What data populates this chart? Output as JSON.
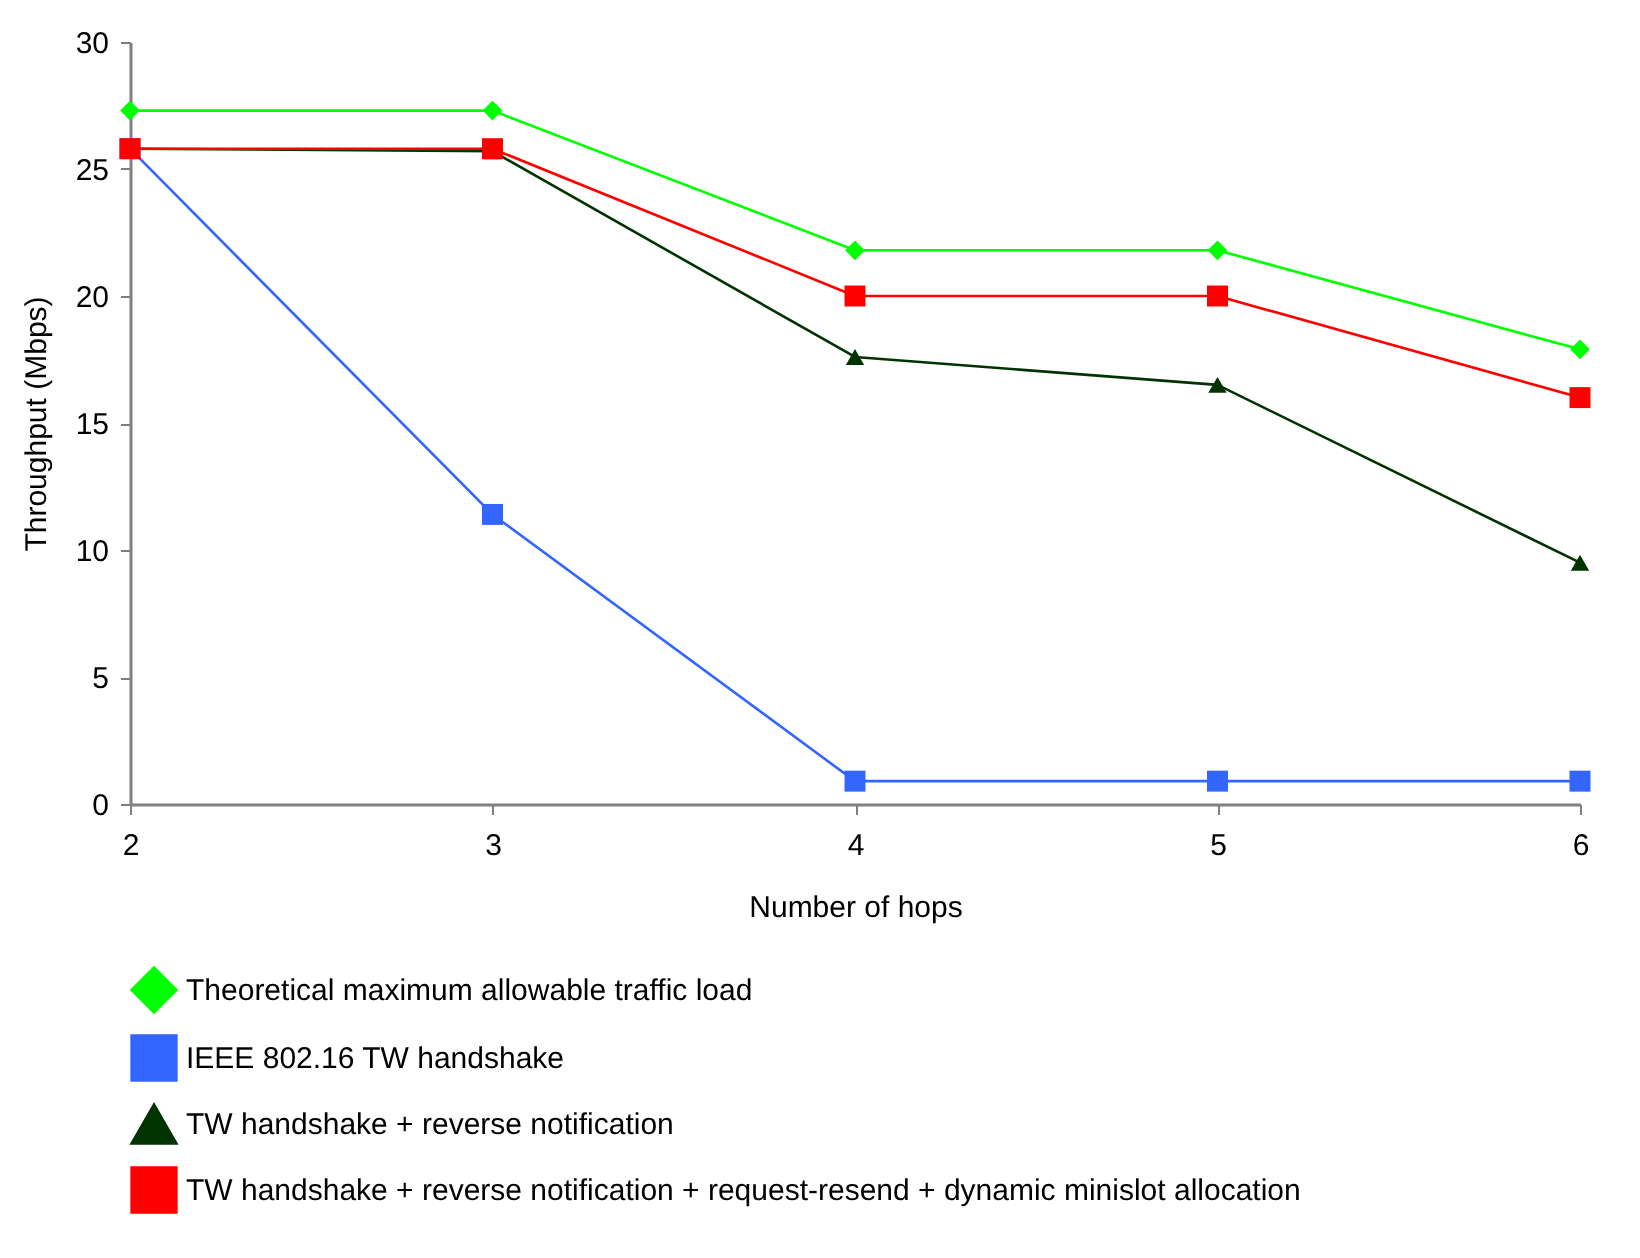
{
  "chart_data": {
    "type": "line",
    "xlabel": "Number of hops",
    "ylabel": "Throughput (Mbps)",
    "x": [
      2,
      3,
      4,
      5,
      6
    ],
    "xlim": [
      2,
      6
    ],
    "xticks": [
      2,
      3,
      4,
      5,
      6
    ],
    "ylim": [
      0,
      30
    ],
    "yticks": [
      0,
      5,
      10,
      15,
      20,
      25,
      30
    ],
    "grid": false,
    "legend": "bottom",
    "series": [
      {
        "name": "Theoretical maximum allowable traffic load",
        "color": "#00ff00",
        "marker": "diamond",
        "values": [
          27.3,
          27.3,
          21.8,
          21.8,
          17.9
        ]
      },
      {
        "name": "IEEE 802.16 TW handshake",
        "color": "#3366ff",
        "marker": "square",
        "values": [
          25.8,
          11.4,
          0.9,
          0.9,
          0.9
        ]
      },
      {
        "name": "TW handshake + reverse notification",
        "color": "#003300",
        "marker": "triangle",
        "values": [
          25.8,
          25.7,
          17.6,
          16.5,
          9.5
        ]
      },
      {
        "name": "TW handshake + reverse notification + request-resend + dynamic minislot allocation",
        "color": "#ff0000",
        "marker": "square",
        "values": [
          25.8,
          25.8,
          20.0,
          20.0,
          16.0
        ]
      }
    ]
  }
}
